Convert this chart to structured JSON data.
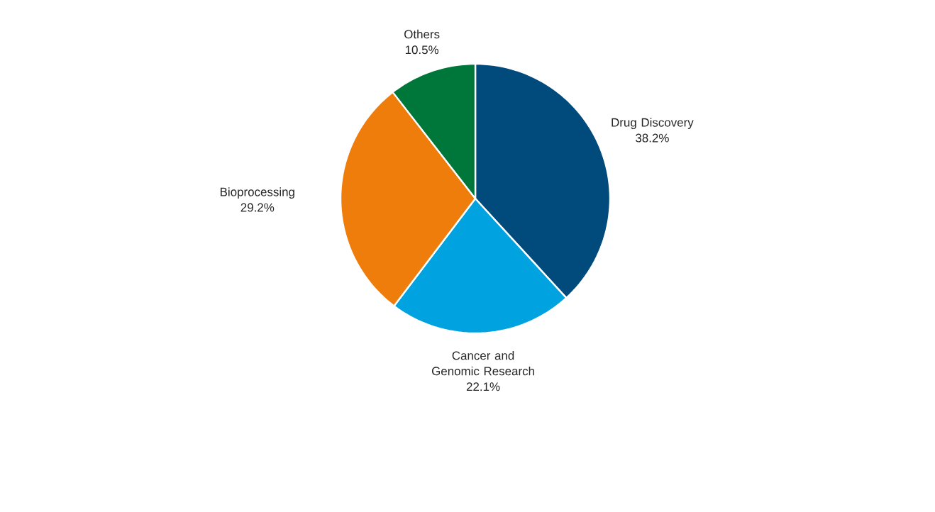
{
  "chart_data": {
    "type": "pie",
    "categories": [
      "Drug Discovery",
      "Cancer and Genomic Research",
      "Bioprocessing",
      "Others"
    ],
    "values": [
      38.2,
      22.1,
      29.2,
      10.5
    ],
    "value_labels": [
      "38.2%",
      "22.1%",
      "29.2%",
      "10.5%"
    ],
    "colors": [
      "#004b7c",
      "#00a3e0",
      "#ef7d0b",
      "#00773a"
    ]
  }
}
